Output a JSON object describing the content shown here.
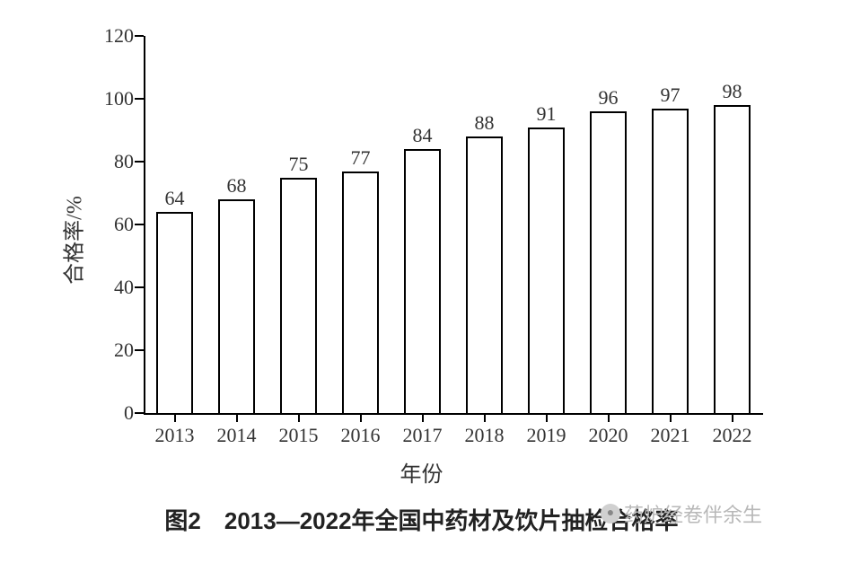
{
  "chart": {
    "type": "bar",
    "categories": [
      "2013",
      "2014",
      "2015",
      "2016",
      "2017",
      "2018",
      "2019",
      "2020",
      "2021",
      "2022"
    ],
    "values": [
      64,
      68,
      75,
      77,
      84,
      88,
      91,
      96,
      97,
      98
    ],
    "bar_fill": "#ffffff",
    "bar_border": "#000000",
    "bar_border_width": 2,
    "bar_width_ratio": 0.58,
    "ylim": [
      0,
      120
    ],
    "ytick_step": 20,
    "yticks": [
      0,
      20,
      40,
      60,
      80,
      100,
      120
    ],
    "ylabel": "合格率/%",
    "xlabel": "年份",
    "axis_color": "#000000",
    "tick_color": "#000000",
    "label_color": "#333333",
    "label_fontsize": 22,
    "axis_title_fontsize": 24,
    "background_color": "#ffffff",
    "data_label_fontsize": 22
  },
  "caption": "图2　2013—2022年全国中药材及饮片抽检合格率",
  "watermark": {
    "text": "药炉经卷伴余生",
    "color": "#b8b8b8"
  }
}
